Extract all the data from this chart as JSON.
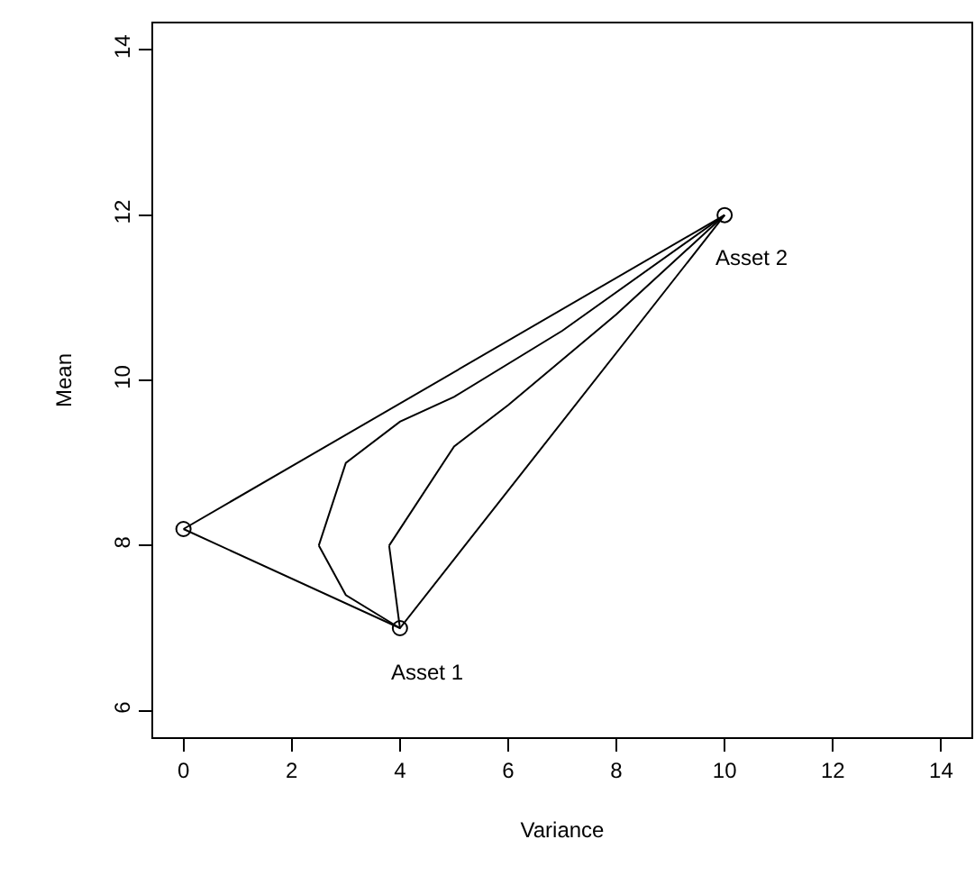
{
  "chart_data": {
    "type": "line",
    "xlabel": "Variance",
    "ylabel": "Mean",
    "xlim": [
      -0.56,
      14.56
    ],
    "ylim": [
      5.68,
      14.32
    ],
    "xticks": [
      0,
      2,
      4,
      6,
      8,
      10,
      12,
      14
    ],
    "yticks": [
      6,
      8,
      10,
      12,
      14
    ],
    "line_style": "solid",
    "marker": "none",
    "series": [
      {
        "color": "#000000",
        "x": [
          0,
          4,
          10
        ],
        "values": [
          8.2,
          7,
          12
        ]
      },
      {
        "color": "#000000",
        "x": [
          0,
          10
        ],
        "values": [
          8.2,
          12
        ]
      },
      {
        "color": "#000000",
        "x": [
          2.5,
          3,
          4
        ],
        "values": [
          8,
          7.4,
          7
        ]
      },
      {
        "color": "#000000",
        "x": [
          2.5,
          3,
          4,
          5,
          7,
          10
        ],
        "values": [
          8,
          9,
          9.5,
          9.8,
          10.6,
          12
        ]
      },
      {
        "color": "#000000",
        "x": [
          3.8,
          4
        ],
        "values": [
          8,
          7
        ]
      },
      {
        "color": "#000000",
        "x": [
          3.8,
          5,
          6,
          8,
          10
        ],
        "values": [
          8,
          9.2,
          9.7,
          10.8,
          12
        ]
      },
      {
        "type": "scatter",
        "color": "#000000",
        "marker": "circle",
        "x": [
          0,
          4,
          10
        ],
        "values": [
          8.2,
          7,
          12
        ]
      }
    ],
    "annotations": [
      {
        "text": "Asset 1",
        "x": 4,
        "y": 7
      },
      {
        "text": "Asset 2",
        "x": 10,
        "y": 12
      }
    ]
  }
}
